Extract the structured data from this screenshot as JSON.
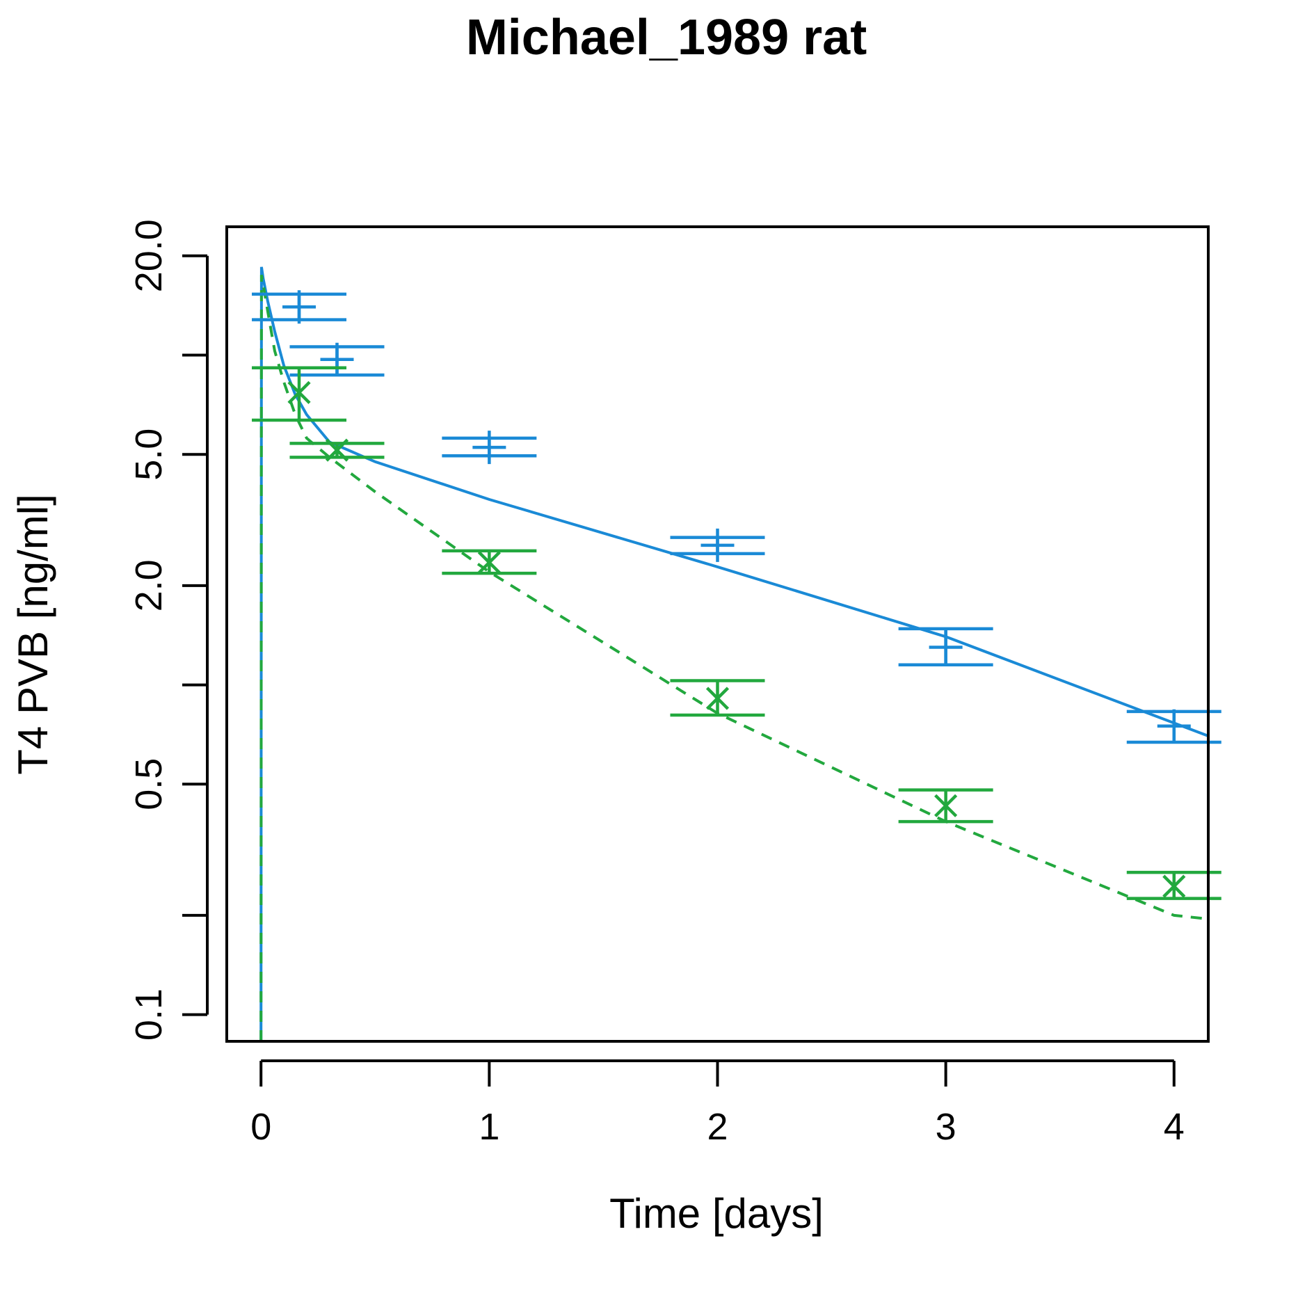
{
  "chart_data": {
    "type": "scatter",
    "title": "Michael_1989 rat",
    "xlabel": "Time [days]",
    "ylabel": "T4 PVB [ng/ml]",
    "xlim": [
      -0.15,
      4.15
    ],
    "ylim": [
      0.083,
      24.5
    ],
    "y_scale": "log",
    "x_ticks": [
      0,
      1,
      2,
      3,
      4
    ],
    "x_tick_labels": [
      "0",
      "1",
      "2",
      "3",
      "4"
    ],
    "y_ticks": [
      0.1,
      0.2,
      0.5,
      1,
      2,
      5,
      10,
      20
    ],
    "y_tick_labels": [
      "0.1",
      "",
      "0.5",
      "",
      "2.0",
      "5.0",
      "",
      "20.0"
    ],
    "grid": false,
    "colors": {
      "blue": "#1a8ad6",
      "green": "#22a83e"
    },
    "series": [
      {
        "marker": "plus",
        "color": "#1a8ad6",
        "points": [
          {
            "x": 0.167,
            "y": 14.0,
            "lo": 12.8,
            "hi": 15.3
          },
          {
            "x": 0.333,
            "y": 9.7,
            "lo": 8.7,
            "hi": 10.6
          },
          {
            "x": 1,
            "y": 5.25,
            "lo": 4.95,
            "hi": 5.6
          },
          {
            "x": 2,
            "y": 2.65,
            "lo": 2.5,
            "hi": 2.8
          },
          {
            "x": 3,
            "y": 1.3,
            "lo": 1.15,
            "hi": 1.48
          },
          {
            "x": 4,
            "y": 0.75,
            "lo": 0.67,
            "hi": 0.83
          }
        ]
      },
      {
        "marker": "x",
        "color": "#22a83e",
        "points": [
          {
            "x": 0.167,
            "y": 7.7,
            "lo": 6.35,
            "hi": 9.15
          },
          {
            "x": 0.333,
            "y": 5.15,
            "lo": 4.9,
            "hi": 5.4
          },
          {
            "x": 1,
            "y": 2.35,
            "lo": 2.18,
            "hi": 2.55
          },
          {
            "x": 2,
            "y": 0.91,
            "lo": 0.81,
            "hi": 1.03
          },
          {
            "x": 3,
            "y": 0.43,
            "lo": 0.385,
            "hi": 0.48
          },
          {
            "x": 4,
            "y": 0.245,
            "lo": 0.225,
            "hi": 0.27
          }
        ]
      }
    ],
    "curves": [
      {
        "style": "solid",
        "color": "#1a8ad6",
        "points": [
          [
            0,
            0.083
          ],
          [
            0.002,
            18.5
          ],
          [
            0.01,
            17.0
          ],
          [
            0.03,
            14.5
          ],
          [
            0.06,
            11.8
          ],
          [
            0.1,
            9.3
          ],
          [
            0.15,
            7.6
          ],
          [
            0.2,
            6.6
          ],
          [
            0.3,
            5.45
          ],
          [
            0.5,
            4.75
          ],
          [
            1,
            3.65
          ],
          [
            2,
            2.28
          ],
          [
            3,
            1.4
          ],
          [
            4.15,
            0.7
          ]
        ]
      },
      {
        "style": "dashed",
        "color": "#22a83e",
        "points": [
          [
            0,
            0.083
          ],
          [
            0.002,
            17.5
          ],
          [
            0.01,
            16.3
          ],
          [
            0.03,
            13.5
          ],
          [
            0.06,
            10.3
          ],
          [
            0.1,
            8.3
          ],
          [
            0.15,
            6.6
          ],
          [
            0.2,
            5.6
          ],
          [
            0.3,
            4.9
          ],
          [
            0.5,
            3.85
          ],
          [
            1,
            2.2
          ],
          [
            2,
            0.82
          ],
          [
            3,
            0.385
          ],
          [
            4,
            0.2
          ],
          [
            4.15,
            0.195
          ]
        ]
      }
    ]
  }
}
